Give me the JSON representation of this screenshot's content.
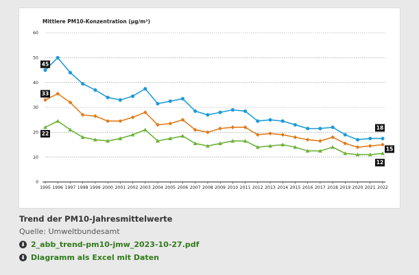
{
  "chart_data": {
    "type": "line",
    "title": "Mittlere PM10-Konzentration (µg/m³)",
    "xlabel": "",
    "ylabel": "",
    "ylim": [
      0,
      60
    ],
    "yticks": [
      0,
      10,
      20,
      30,
      40,
      50,
      60
    ],
    "grid": true,
    "legend": "none",
    "categories": [
      "1995",
      "1996",
      "1997",
      "1998",
      "1999",
      "2000",
      "2001",
      "2002",
      "2003",
      "2004",
      "2005",
      "2006",
      "2007",
      "2008",
      "2009",
      "2010",
      "2011",
      "2012",
      "2013",
      "2014",
      "2015",
      "2016",
      "2017",
      "2018",
      "2019",
      "2020",
      "2021",
      "2022"
    ],
    "series": [
      {
        "color": "#1f9bd6",
        "marker": "circle",
        "values": [
          45,
          50,
          44,
          39.5,
          37,
          34,
          33,
          34.5,
          37.5,
          31.5,
          32.5,
          33.5,
          28.5,
          27,
          28,
          29,
          28.5,
          24.5,
          25,
          24.5,
          23,
          21.5,
          21.5,
          22,
          19,
          17,
          17.5,
          17.5
        ],
        "labels": [
          {
            "index": 0,
            "text": "45",
            "side": "left"
          },
          {
            "index": 27,
            "text": "18",
            "side": "above"
          }
        ]
      },
      {
        "color": "#e07b1a",
        "marker": "diamond",
        "values": [
          33,
          35.5,
          32,
          27,
          26.5,
          24.5,
          24.5,
          26,
          28,
          23,
          23.5,
          25,
          21,
          20,
          21.5,
          22,
          22,
          19,
          19.5,
          19,
          18,
          17,
          16.5,
          18,
          15.5,
          14,
          14.5,
          15
        ],
        "labels": [
          {
            "index": 0,
            "text": "33",
            "side": "left"
          },
          {
            "index": 27,
            "text": "15",
            "side": "right"
          }
        ]
      },
      {
        "color": "#6cb23a",
        "marker": "triangle",
        "values": [
          22,
          24.5,
          21,
          18,
          17,
          16.5,
          17.5,
          19,
          21,
          16.5,
          17.5,
          18.5,
          15.5,
          14.5,
          15.5,
          16.5,
          16.5,
          14,
          14.5,
          15,
          14,
          12.5,
          12.5,
          14,
          11.5,
          11,
          11,
          11.5
        ],
        "labels": [
          {
            "index": 0,
            "text": "22",
            "side": "left"
          },
          {
            "index": 27,
            "text": "12",
            "side": "below"
          }
        ]
      }
    ]
  },
  "caption": {
    "title": "Trend der PM10-Jahresmittelwerte",
    "source": "Quelle: Umweltbundesamt"
  },
  "downloads": [
    {
      "label": "2_abb_trend-pm10-jmw_2023-10-27.pdf",
      "icon": "download-icon"
    },
    {
      "label": "Diagramm als Excel mit Daten",
      "icon": "download-icon"
    }
  ]
}
